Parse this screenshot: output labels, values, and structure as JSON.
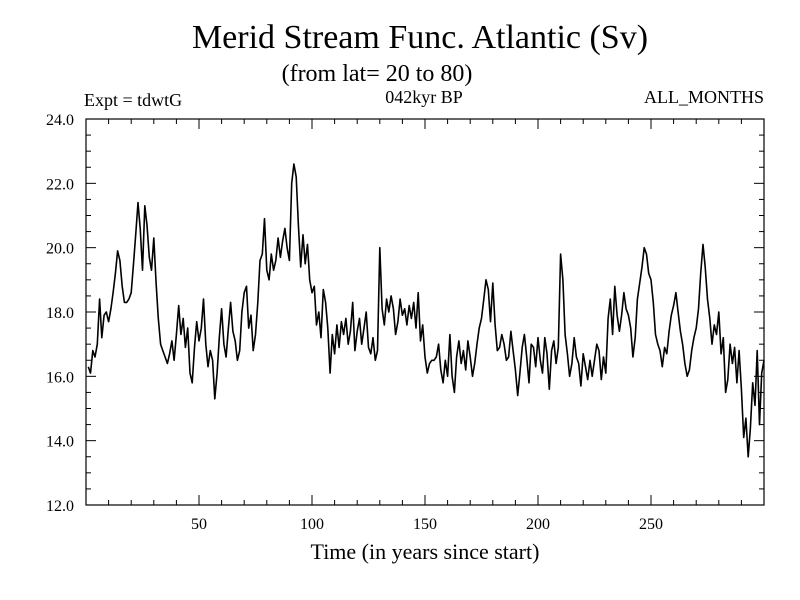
{
  "chart_data": {
    "type": "line",
    "title": "Merid Stream Func. Atlantic (Sv)",
    "subtitle": "(from lat= 20 to 80)",
    "experiment_label": "Expt = tdwtG",
    "period_label": "042kyr BP",
    "months_label": "ALL_MONTHS",
    "xlabel": "Time (in years since start)",
    "ylabel": "",
    "xlim": [
      0,
      300
    ],
    "ylim": [
      12.0,
      24.0
    ],
    "x_ticks": [
      50,
      100,
      150,
      200,
      250
    ],
    "x_tick_labels": [
      "50",
      "100",
      "150",
      "200",
      "250"
    ],
    "y_ticks": [
      12,
      14,
      16,
      18,
      20,
      22,
      24
    ],
    "y_tick_labels": [
      "12.0",
      "14.0",
      "16.0",
      "18.0",
      "20.0",
      "22.0",
      "24.0"
    ],
    "grid": false,
    "line_color": "#000000",
    "series": [
      {
        "name": "Merid Stream Func. Atlantic",
        "x": [
          1,
          2,
          3,
          4,
          5,
          6,
          7,
          8,
          9,
          10,
          11,
          12,
          13,
          14,
          15,
          16,
          17,
          18,
          19,
          20,
          21,
          22,
          23,
          24,
          25,
          26,
          27,
          28,
          29,
          30,
          31,
          32,
          33,
          34,
          35,
          36,
          37,
          38,
          39,
          40,
          41,
          42,
          43,
          44,
          45,
          46,
          47,
          48,
          49,
          50,
          51,
          52,
          53,
          54,
          55,
          56,
          57,
          58,
          59,
          60,
          61,
          62,
          63,
          64,
          65,
          66,
          67,
          68,
          69,
          70,
          71,
          72,
          73,
          74,
          75,
          76,
          77,
          78,
          79,
          80,
          81,
          82,
          83,
          84,
          85,
          86,
          87,
          88,
          89,
          90,
          91,
          92,
          93,
          94,
          95,
          96,
          97,
          98,
          99,
          100,
          101,
          102,
          103,
          104,
          105,
          106,
          107,
          108,
          109,
          110,
          111,
          112,
          113,
          114,
          115,
          116,
          117,
          118,
          119,
          120,
          121,
          122,
          123,
          124,
          125,
          126,
          127,
          128,
          129,
          130,
          131,
          132,
          133,
          134,
          135,
          136,
          137,
          138,
          139,
          140,
          141,
          142,
          143,
          144,
          145,
          146,
          147,
          148,
          149,
          150,
          151,
          152,
          153,
          154,
          155,
          156,
          157,
          158,
          159,
          160,
          161,
          162,
          163,
          164,
          165,
          166,
          167,
          168,
          169,
          170,
          171,
          172,
          173,
          174,
          175,
          176,
          177,
          178,
          179,
          180,
          181,
          182,
          183,
          184,
          185,
          186,
          187,
          188,
          189,
          190,
          191,
          192,
          193,
          194,
          195,
          196,
          197,
          198,
          199,
          200,
          201,
          202,
          203,
          204,
          205,
          206,
          207,
          208,
          209,
          210,
          211,
          212,
          213,
          214,
          215,
          216,
          217,
          218,
          219,
          220,
          221,
          222,
          223,
          224,
          225,
          226,
          227,
          228,
          229,
          230,
          231,
          232,
          233,
          234,
          235,
          236,
          237,
          238,
          239,
          240,
          241,
          242,
          243,
          244,
          245,
          246,
          247,
          248,
          249,
          250,
          251,
          252,
          253,
          254,
          255,
          256,
          257,
          258,
          259,
          260,
          261,
          262,
          263,
          264,
          265,
          266,
          267,
          268,
          269,
          270,
          271,
          272,
          273,
          274,
          275,
          276,
          277,
          278,
          279,
          280,
          281,
          282,
          283,
          284,
          285,
          286,
          287,
          288,
          289,
          290,
          291,
          292,
          293,
          294,
          295,
          296,
          297,
          298,
          299,
          300
        ],
        "values": [
          16.3,
          16.1,
          16.8,
          16.6,
          17.0,
          18.4,
          17.2,
          17.9,
          18.0,
          17.7,
          18.1,
          18.6,
          19.2,
          19.9,
          19.6,
          18.8,
          18.3,
          18.3,
          18.4,
          18.6,
          19.5,
          20.4,
          21.4,
          20.6,
          19.3,
          21.3,
          20.7,
          19.7,
          19.3,
          20.3,
          18.9,
          17.8,
          17.0,
          16.8,
          16.6,
          16.4,
          16.7,
          17.1,
          16.5,
          17.3,
          18.2,
          17.3,
          17.8,
          16.9,
          17.5,
          16.1,
          15.8,
          16.9,
          17.7,
          17.1,
          17.5,
          18.4,
          17.0,
          16.3,
          16.8,
          16.5,
          15.3,
          16.1,
          17.2,
          18.1,
          17.0,
          16.6,
          17.5,
          18.3,
          17.4,
          17.1,
          16.5,
          16.8,
          18.0,
          18.6,
          18.8,
          17.5,
          17.9,
          16.8,
          17.3,
          18.3,
          19.6,
          19.8,
          20.9,
          19.3,
          19.0,
          19.8,
          19.3,
          19.6,
          20.3,
          19.7,
          20.2,
          20.6,
          20.0,
          19.6,
          22.0,
          22.6,
          22.2,
          20.7,
          19.4,
          20.4,
          19.5,
          20.1,
          19.0,
          18.6,
          18.8,
          17.6,
          18.0,
          17.2,
          18.7,
          18.3,
          17.5,
          16.1,
          17.3,
          16.7,
          17.6,
          16.9,
          17.7,
          17.3,
          17.8,
          17.0,
          17.4,
          18.3,
          16.8,
          17.4,
          17.8,
          17.0,
          17.5,
          18.0,
          16.9,
          16.7,
          17.2,
          16.5,
          16.8,
          20.0,
          18.1,
          17.6,
          18.4,
          18.0,
          18.5,
          18.1,
          17.3,
          17.7,
          18.4,
          17.9,
          18.1,
          17.6,
          18.2,
          17.8,
          18.3,
          17.5,
          18.6,
          17.1,
          17.6,
          16.6,
          16.1,
          16.4,
          16.5,
          16.5,
          16.6,
          17.0,
          16.2,
          15.8,
          16.5,
          16.0,
          17.3,
          16.0,
          15.5,
          16.6,
          17.1,
          16.4,
          16.8,
          16.2,
          17.1,
          16.6,
          16.0,
          16.4,
          17.0,
          17.5,
          17.8,
          18.4,
          19.0,
          18.7,
          17.7,
          18.9,
          17.6,
          16.8,
          16.9,
          17.3,
          17.0,
          16.5,
          16.6,
          17.4,
          16.8,
          16.2,
          15.4,
          16.1,
          16.9,
          17.3,
          16.6,
          15.8,
          17.0,
          16.9,
          16.3,
          17.2,
          16.5,
          16.1,
          17.2,
          16.7,
          15.6,
          16.8,
          17.1,
          16.4,
          16.9,
          19.8,
          19.0,
          17.3,
          16.7,
          16.0,
          16.4,
          17.2,
          16.6,
          16.4,
          15.7,
          16.7,
          16.3,
          15.9,
          16.5,
          16.0,
          16.5,
          17.0,
          16.8,
          15.9,
          16.6,
          16.1,
          17.8,
          18.4,
          17.3,
          18.8,
          17.9,
          17.4,
          17.9,
          18.6,
          18.1,
          17.9,
          17.5,
          16.6,
          17.2,
          18.4,
          18.9,
          19.4,
          20.0,
          19.8,
          19.2,
          19.0,
          18.3,
          17.3,
          17.0,
          16.8,
          16.3,
          16.9,
          16.7,
          17.4,
          17.9,
          18.2,
          18.6,
          18.0,
          17.4,
          17.0,
          16.4,
          16.0,
          16.2,
          16.8,
          17.2,
          17.5,
          18.1,
          19.2,
          20.1,
          19.4,
          18.4,
          17.8,
          17.0,
          17.6,
          17.3,
          18.0,
          16.7,
          17.2,
          15.5,
          15.9,
          17.0,
          16.4,
          16.9,
          15.8,
          16.8,
          15.6,
          14.1,
          14.7,
          13.5,
          14.4,
          15.8,
          15.1,
          16.8,
          14.5,
          16.1,
          16.5
        ]
      }
    ]
  }
}
